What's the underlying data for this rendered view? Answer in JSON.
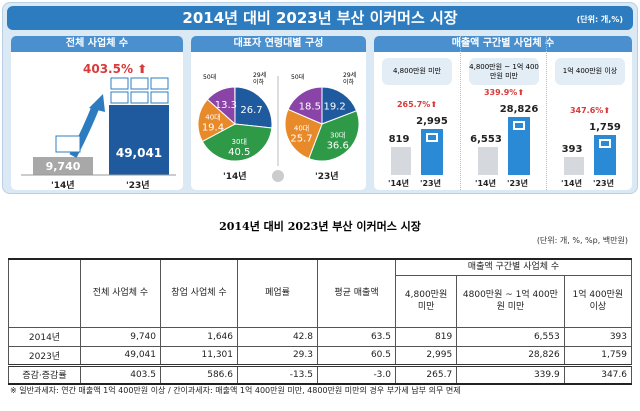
{
  "header": {
    "title": "2014년 대비 2023년 부산 이커머스 시장",
    "unit": "(단위: 개,%)"
  },
  "panel1": {
    "title": "전체 사업체 수",
    "growth": "403.5%",
    "v2014": "9,740",
    "v2023": "49,041",
    "l2014": "'14년",
    "l2023": "'23년"
  },
  "panel2": {
    "title": "대표자 연령대별 구성",
    "labels": {
      "u29": "29세 이하",
      "s30": "30대",
      "s40": "40대",
      "s50": "50대"
    },
    "l2014": "'14년",
    "l2023": "'23년"
  },
  "panel3": {
    "title": "매출액 구간별 사업체 수",
    "bins": [
      {
        "label": "4,800만원 미만",
        "growth": "265.7%",
        "v2014": "819",
        "v2023": "2,995"
      },
      {
        "label": "4,800만원 ~ 1억 400만원 미만",
        "growth": "339.9%",
        "v2014": "6,553",
        "v2023": "28,826"
      },
      {
        "label": "1억 400만원 이상",
        "growth": "347.6%",
        "v2014": "393",
        "v2023": "1,759"
      }
    ],
    "l2014": "'14년",
    "l2023": "'23년"
  },
  "colors": {
    "u29": "#1f5a9e",
    "s30": "#2e9a48",
    "s40": "#e88a2a",
    "s50": "#8a44a8",
    "bar2014": "#a8a8a8",
    "bar2023": "#1f5a9e",
    "accent": "#2e7cc0",
    "up": "#d93a3a"
  },
  "chart_data": [
    {
      "type": "bar",
      "title": "전체 사업체 수",
      "categories": [
        "'14년",
        "'23년"
      ],
      "values": [
        9740,
        49041
      ],
      "annotation": "403.5%"
    },
    {
      "type": "pie",
      "title": "대표자 연령대별 구성",
      "subtitle": "'14년",
      "categories": [
        "29세 이하",
        "30대",
        "40대",
        "50대"
      ],
      "values": [
        26.7,
        40.5,
        19.4,
        13.3
      ]
    },
    {
      "type": "pie",
      "title": "대표자 연령대별 구성",
      "subtitle": "'23년",
      "categories": [
        "29세 이하",
        "30대",
        "40대",
        "50대"
      ],
      "values": [
        19.2,
        36.6,
        25.7,
        18.5
      ]
    },
    {
      "type": "bar",
      "title": "매출액 구간별 사업체 수",
      "categories": [
        "4,800만원 미만",
        "4,800만원 ~ 1억 400만원 미만",
        "1억 400만원 이상"
      ],
      "series": [
        {
          "name": "'14년",
          "values": [
            819,
            6553,
            393
          ]
        },
        {
          "name": "'23년",
          "values": [
            2995,
            28826,
            1759
          ]
        }
      ],
      "annotations": [
        "265.7%",
        "339.9%",
        "347.6%"
      ]
    }
  ],
  "table": {
    "title": "2014년 대비 2023년 부산 이커머스 시장",
    "unit": "(단위: 개, %, %p, 백만원)",
    "headers": {
      "total": "전체 사업체 수",
      "startup": "창업 사업체 수",
      "closure": "폐업률",
      "avg": "평균 매출액",
      "group": "매출액 구간별 사업체 수",
      "b1": "4,800만원 미만",
      "b2": "4800만원 ~ 1억 400만원 미만",
      "b3": "1억 400만원 이상"
    },
    "rows": [
      [
        "2014년",
        "9,740",
        "1,646",
        "42.8",
        "63.5",
        "819",
        "6,553",
        "393"
      ],
      [
        "2023년",
        "49,041",
        "11,301",
        "29.3",
        "60.5",
        "2,995",
        "28,826",
        "1,759"
      ],
      [
        "증감·증감률",
        "403.5",
        "586.6",
        "-13.5",
        "-3.0",
        "265.7",
        "339.9",
        "347.6"
      ]
    ]
  },
  "footnote": "※ 일반과세자: 연간 매출액 1억 400만원 이상 / 간이과세자: 매출액 1억 400만원 미만, 4800만원 미만의 경우 부가세 납부 의무 면제"
}
